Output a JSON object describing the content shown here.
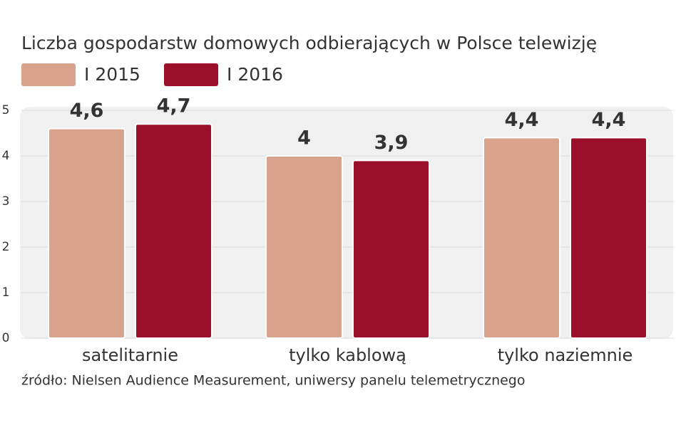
{
  "chart_data": {
    "type": "bar",
    "title": "Liczba gospodarstw domowych odbierających w Polsce telewizję",
    "categories": [
      "satelitarnie",
      "tylko kablową",
      "tylko naziemnie"
    ],
    "series": [
      {
        "name": "I 2015",
        "color": "#d9a28d",
        "values": [
          4.6,
          4.0,
          4.4
        ],
        "value_labels": [
          "4,6",
          "4",
          "4,4"
        ]
      },
      {
        "name": "I 2016",
        "color": "#9c0f2b",
        "values": [
          4.7,
          3.9,
          4.4
        ],
        "value_labels": [
          "4,7",
          "3,9",
          "4,4"
        ]
      }
    ],
    "ylim": [
      0,
      5
    ],
    "yticks": [
      0,
      1,
      2,
      3,
      4,
      5
    ],
    "grid": true,
    "source": "źródło: Nielsen Audience Measurement, uniwersy panelu telemetrycznego"
  }
}
